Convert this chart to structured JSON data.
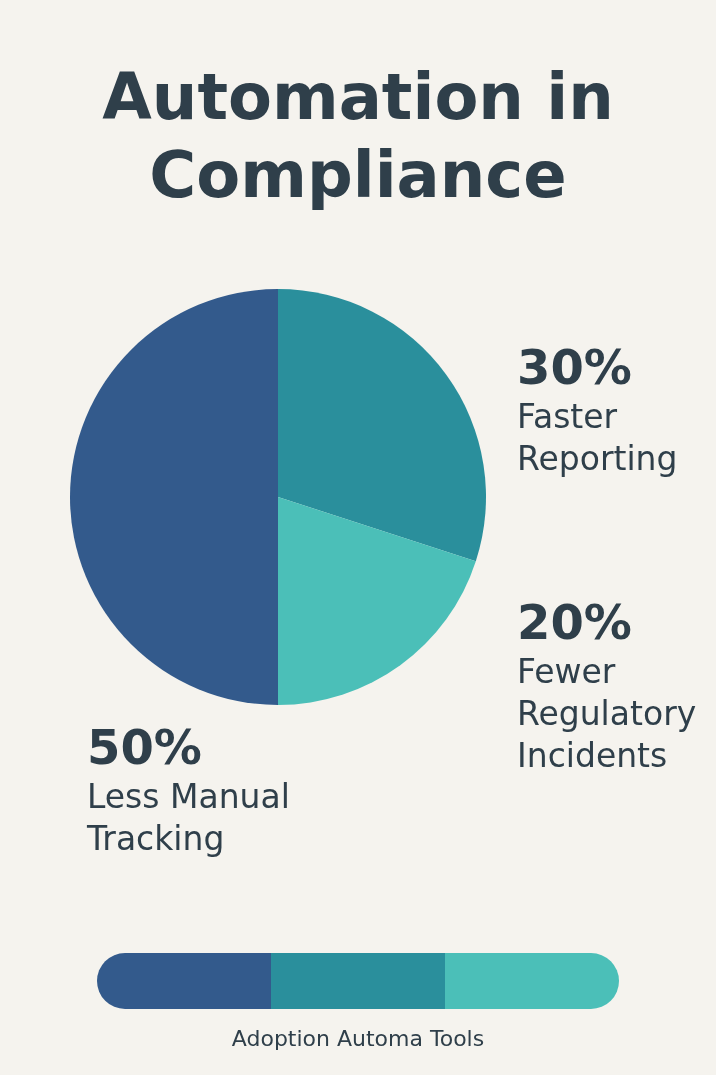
{
  "chart_data": {
    "type": "pie",
    "title": "Automation in Compliance",
    "categories": [
      "Faster Reporting",
      "Fewer Regulatory Incidents",
      "Less Manual Tracking"
    ],
    "values": [
      30,
      20,
      50
    ],
    "colors": [
      "#2a8f9c",
      "#4bbfb8",
      "#335a8c"
    ],
    "value_labels": [
      "30%",
      "20%",
      "50%"
    ],
    "annotations": [
      "Adoption Automa Tools"
    ]
  }
}
